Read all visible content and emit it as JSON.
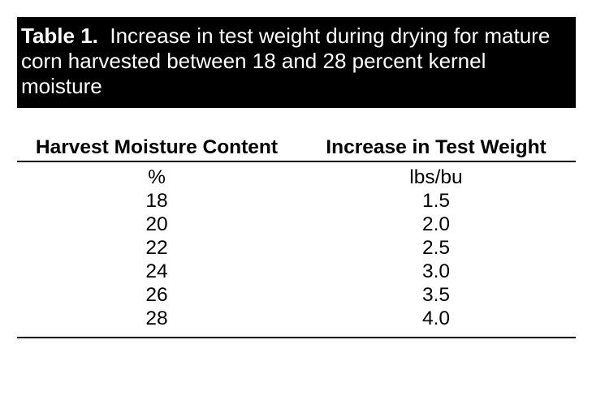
{
  "caption": {
    "lead": "Table 1.",
    "text": "Increase in test weight during drying for mature corn harvested between 18 and 28 percent kernel moisture"
  },
  "table": {
    "headers": [
      "Harvest Moisture Content",
      "Increase in Test Weight"
    ],
    "units": [
      "%",
      "lbs/bu"
    ],
    "rows": [
      [
        "18",
        "1.5"
      ],
      [
        "20",
        "2.0"
      ],
      [
        "22",
        "2.5"
      ],
      [
        "24",
        "3.0"
      ],
      [
        "26",
        "3.5"
      ],
      [
        "28",
        "4.0"
      ]
    ]
  }
}
